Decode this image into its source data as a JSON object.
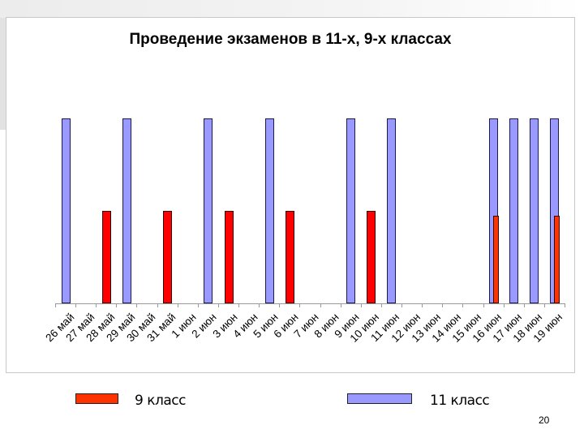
{
  "slide": {
    "page_number": "20"
  },
  "legend": {
    "items": [
      {
        "label": "9 класс",
        "color": "#ff3300"
      },
      {
        "label": "11 класс",
        "color": "#9999ff"
      }
    ]
  },
  "chart_data": {
    "type": "bar",
    "title": "Проведение экзаменов в 11-х, 9-х классах",
    "xlabel": "",
    "ylabel": "",
    "grid": false,
    "legend_position": "bottom",
    "categories": [
      "26 май",
      "27 май",
      "28 май",
      "29 май",
      "30 май",
      "31 май",
      "1 июн",
      "2 июн",
      "3 июн",
      "4 июн",
      "5 июн",
      "6 июн",
      "7 июн",
      "8 июн",
      "9 июн",
      "10 июн",
      "11 июн",
      "12 июн",
      "13 июн",
      "14 июн",
      "15 июн",
      "16 июн",
      "17 июн",
      "18 июн",
      "19 июн"
    ],
    "series": [
      {
        "name": "11 класс",
        "color": "#9999ff",
        "values": [
          2,
          0,
          0,
          2,
          0,
          0,
          0,
          2,
          0,
          0,
          2,
          0,
          0,
          0,
          2,
          0,
          2,
          0,
          0,
          0,
          0,
          2,
          2,
          2,
          2
        ]
      },
      {
        "name": "9 класс",
        "color": "#ff0000",
        "values": [
          0,
          0,
          1,
          0,
          0,
          1,
          0,
          0,
          1,
          0,
          0,
          1,
          0,
          0,
          0,
          1,
          0,
          0,
          0,
          0,
          0,
          1,
          0,
          0,
          1
        ]
      }
    ],
    "ylim": [
      0,
      2
    ]
  }
}
